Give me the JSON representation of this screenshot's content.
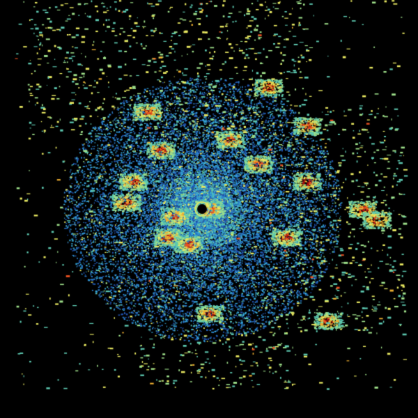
{
  "image": {
    "kind": "radar-reflectivity-ppi",
    "background_color": "#000000",
    "colormap": [
      "#1f4fa8",
      "#2a7fd0",
      "#35a8d8",
      "#5cc8b0",
      "#9ee08a",
      "#e8e860",
      "#f0b030",
      "#e85020",
      "#b01010"
    ]
  }
}
